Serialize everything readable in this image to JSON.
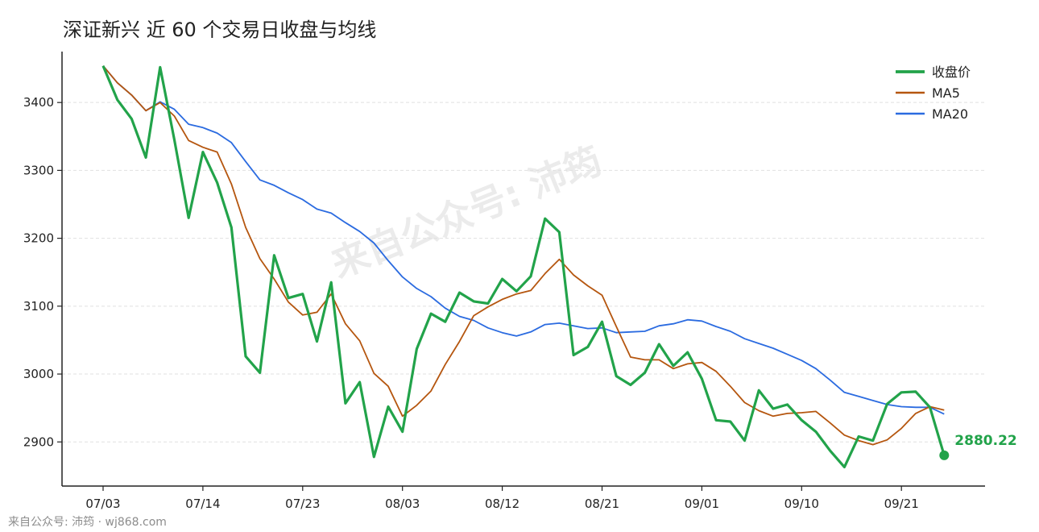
{
  "title": "深证新兴 近 60 个交易日收盘与均线",
  "watermark": "来自公众号: 沛筠",
  "footer": "来自公众号: 沛筠 · wj868.com",
  "colors": {
    "close": "#22a34a",
    "ma5": "#b5560f",
    "ma20": "#2b6be0",
    "grid": "#e0e0e0"
  },
  "chart_data": {
    "type": "line",
    "title": "深证新兴 近 60 个交易日收盘与均线",
    "xlabel": "",
    "ylabel": "",
    "ylim": [
      2835,
      3475
    ],
    "grid": true,
    "legend_position": "top-right",
    "x_ticks": [
      {
        "index": 0,
        "label": "07/03"
      },
      {
        "index": 7,
        "label": "07/14"
      },
      {
        "index": 14,
        "label": "07/23"
      },
      {
        "index": 21,
        "label": "08/03"
      },
      {
        "index": 28,
        "label": "08/12"
      },
      {
        "index": 35,
        "label": "08/21"
      },
      {
        "index": 42,
        "label": "09/01"
      },
      {
        "index": 49,
        "label": "09/10"
      },
      {
        "index": 56,
        "label": "09/21"
      }
    ],
    "y_ticks": [
      2900,
      3000,
      3100,
      3200,
      3300,
      3400
    ],
    "series": [
      {
        "name": "收盘价",
        "key": "close",
        "values": [
          3454,
          3404,
          3376,
          3319,
          3452,
          3345,
          3230,
          3327,
          3282,
          3216,
          3026,
          3002,
          3175,
          3112,
          3118,
          3048,
          3135,
          2957,
          2988,
          2878,
          2952,
          2915,
          3037,
          3089,
          3077,
          3120,
          3107,
          3104,
          3140,
          3122,
          3144,
          3229,
          3209,
          3028,
          3040,
          3077,
          2997,
          2984,
          3002,
          3044,
          3012,
          3032,
          2993,
          2932,
          2930,
          2902,
          2976,
          2949,
          2955,
          2932,
          2915,
          2887,
          2863,
          2908,
          2902,
          2956,
          2973,
          2974,
          2951,
          2880.22
        ]
      },
      {
        "name": "MA5",
        "key": "ma5",
        "values": [
          3454,
          3429,
          3411,
          3388,
          3400,
          3380,
          3344,
          3334,
          3327,
          3280,
          3216,
          3170,
          3140,
          3106,
          3087,
          3091,
          3118,
          3074,
          3049,
          3001,
          2982,
          2938,
          2954,
          2975,
          3014,
          3048,
          3086,
          3099,
          3110,
          3118,
          3123,
          3148,
          3169,
          3146,
          3130,
          3116,
          3070,
          3025,
          3021,
          3021,
          3008,
          3015,
          3017,
          3004,
          2982,
          2958,
          2946,
          2938,
          2942,
          2943,
          2945,
          2928,
          2910,
          2902,
          2896,
          2903,
          2920,
          2942,
          2952,
          2947
        ]
      },
      {
        "name": "MA20",
        "key": "ma20",
        "values": [
          3454,
          3429,
          3411,
          3388,
          3401,
          3390,
          3368,
          3363,
          3355,
          3341,
          3313,
          3286,
          3278,
          3267,
          3257,
          3243,
          3237,
          3223,
          3210,
          3193,
          3167,
          3143,
          3126,
          3114,
          3097,
          3085,
          3079,
          3068,
          3061,
          3056,
          3062,
          3073,
          3075,
          3071,
          3067,
          3068,
          3061,
          3062,
          3063,
          3071,
          3074,
          3080,
          3078,
          3070,
          3063,
          3052,
          3045,
          3038,
          3029,
          3020,
          3008,
          2991,
          2973,
          2967,
          2961,
          2955,
          2952,
          2951,
          2951,
          2941
        ]
      }
    ],
    "last_value_label": "2880.22"
  }
}
